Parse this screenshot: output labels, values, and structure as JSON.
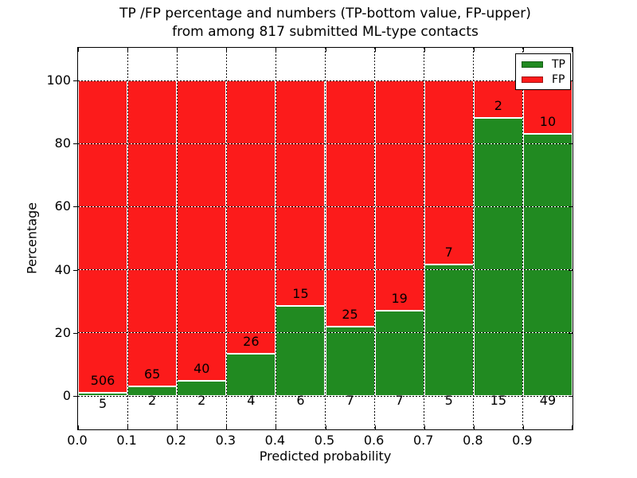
{
  "figure": {
    "title_line1": "TP /FP percentage and numbers (TP-bottom value, FP-upper)",
    "title_line2": "from among 817 submitted ML-type contacts"
  },
  "chart_data": {
    "type": "bar",
    "stacked": true,
    "normalized_to_percent": true,
    "title": "TP /FP percentage and numbers (TP-bottom value, FP-upper) from among 817 submitted ML-type contacts",
    "xlabel": "Predicted probability",
    "ylabel": "Percentage",
    "total_contacts": 817,
    "bin_edges": [
      0.0,
      0.1,
      0.2,
      0.3,
      0.4,
      0.5,
      0.6,
      0.7,
      0.8,
      0.9,
      1.0
    ],
    "categories": [
      "0.0-0.1",
      "0.1-0.2",
      "0.2-0.3",
      "0.3-0.4",
      "0.4-0.5",
      "0.5-0.6",
      "0.6-0.7",
      "0.7-0.8",
      "0.8-0.9",
      "0.9-1.0"
    ],
    "series": [
      {
        "name": "TP",
        "color": "#218a21",
        "counts": [
          5,
          2,
          2,
          4,
          6,
          7,
          7,
          5,
          15,
          49
        ]
      },
      {
        "name": "FP",
        "color": "#fc1b1b",
        "counts": [
          506,
          65,
          40,
          26,
          15,
          25,
          19,
          7,
          2,
          10
        ]
      }
    ],
    "tp_percent": [
      0.98,
      2.99,
      4.76,
      13.33,
      28.57,
      21.88,
      26.92,
      41.67,
      88.24,
      83.05
    ],
    "x_ticks": [
      "0.0",
      "0.1",
      "0.2",
      "0.3",
      "0.4",
      "0.5",
      "0.6",
      "0.7",
      "0.8",
      "0.9"
    ],
    "y_ticks": [
      0,
      20,
      40,
      60,
      80,
      100
    ],
    "xlim": [
      0.0,
      1.0
    ],
    "ylim": [
      -10.9,
      110.4
    ],
    "grid": true,
    "legend": {
      "position": "upper right",
      "entries": [
        {
          "label": "TP",
          "color": "#218a21",
          "edge": "#145c14"
        },
        {
          "label": "FP",
          "color": "#fc1b1b",
          "edge": "#a31212"
        }
      ]
    }
  }
}
